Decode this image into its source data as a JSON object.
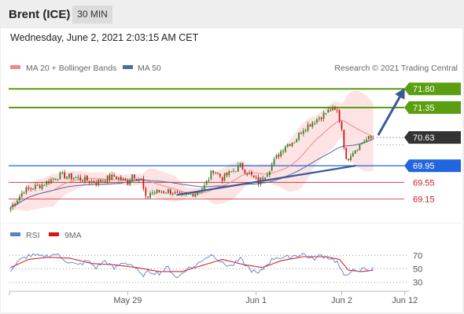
{
  "header": {
    "instrument": "Brent (ICE)",
    "timeframe": "30 MIN",
    "datetime": "Wednesday, June 2, 2021 2:03:15 AM CET"
  },
  "legend": {
    "ma20": "MA 20 + Bollinger Bands",
    "ma50": "MA 50",
    "credit": "Research © 2021 Trading Central",
    "rsi": "RSI",
    "ma9": "9MA"
  },
  "colors": {
    "green": "#5a9e11",
    "blue": "#2266dd",
    "red": "#cc2222",
    "dark": "#333333",
    "candle_up": "#2e7d1e",
    "candle_down": "#cc1111",
    "ma20": "#ee8888",
    "ma50": "#4a6da8",
    "band_fill": "#fde3e3",
    "trend": "#3a5a95"
  },
  "chart_data": [
    {
      "type": "candlestick",
      "name": "price",
      "y_range": [
        68.8,
        72.05
      ],
      "levels": [
        {
          "value": 71.8,
          "label": "71.80",
          "kind": "resistance",
          "color": "#5a9e11",
          "style": "tag"
        },
        {
          "value": 71.35,
          "label": "71.35",
          "kind": "resistance",
          "color": "#5a9e11",
          "style": "tag"
        },
        {
          "value": 70.63,
          "label": "70.63",
          "kind": "last",
          "color": "#333333",
          "style": "tag"
        },
        {
          "value": 69.95,
          "label": "69.95",
          "kind": "pivot",
          "color": "#2266dd",
          "style": "tag"
        },
        {
          "value": 69.55,
          "label": "69.55",
          "kind": "support",
          "color": "#cc2222",
          "style": "text"
        },
        {
          "value": 69.15,
          "label": "69.15",
          "kind": "support",
          "color": "#cc2222",
          "style": "text"
        }
      ],
      "x_ticks": [
        {
          "label": "May 29",
          "bar": 52
        },
        {
          "label": "Jun 1",
          "bar": 109
        },
        {
          "label": "Jun 2",
          "bar": 147
        },
        {
          "label": "Jun 12",
          "bar": 175
        }
      ],
      "total_slots": 177,
      "bars": 162,
      "anchors": [
        [
          0,
          68.95
        ],
        [
          6,
          69.35
        ],
        [
          14,
          69.5
        ],
        [
          22,
          69.72
        ],
        [
          30,
          69.65
        ],
        [
          38,
          69.55
        ],
        [
          46,
          69.7
        ],
        [
          52,
          69.55
        ],
        [
          54,
          69.75
        ],
        [
          58,
          69.6
        ],
        [
          60,
          69.15
        ],
        [
          62,
          69.3
        ],
        [
          70,
          69.35
        ],
        [
          76,
          69.2
        ],
        [
          82,
          69.3
        ],
        [
          86,
          69.45
        ],
        [
          90,
          69.85
        ],
        [
          94,
          69.65
        ],
        [
          98,
          69.8
        ],
        [
          102,
          69.95
        ],
        [
          106,
          69.75
        ],
        [
          110,
          69.55
        ],
        [
          114,
          69.8
        ],
        [
          118,
          70.15
        ],
        [
          122,
          70.45
        ],
        [
          126,
          70.55
        ],
        [
          130,
          70.85
        ],
        [
          134,
          71.0
        ],
        [
          138,
          71.15
        ],
        [
          142,
          71.3
        ],
        [
          145,
          71.25
        ],
        [
          147,
          70.85
        ],
        [
          149,
          70.05
        ],
        [
          151,
          70.25
        ],
        [
          154,
          70.4
        ],
        [
          157,
          70.55
        ],
        [
          159,
          70.6
        ],
        [
          161,
          70.63
        ]
      ],
      "trendline": [
        [
          74,
          69.25
        ],
        [
          153,
          69.95
        ]
      ],
      "projection": [
        [
          162,
          70.63
        ],
        [
          175,
          71.82
        ]
      ]
    },
    {
      "type": "line",
      "name": "rsi",
      "y_ticks": [
        70,
        50,
        30
      ],
      "y_range": [
        18,
        82
      ],
      "anchors": [
        [
          0,
          48
        ],
        [
          4,
          62
        ],
        [
          8,
          70
        ],
        [
          14,
          68
        ],
        [
          20,
          72
        ],
        [
          26,
          60
        ],
        [
          30,
          55
        ],
        [
          34,
          62
        ],
        [
          38,
          52
        ],
        [
          42,
          62
        ],
        [
          46,
          50
        ],
        [
          50,
          60
        ],
        [
          54,
          56
        ],
        [
          58,
          40
        ],
        [
          62,
          46
        ],
        [
          66,
          44
        ],
        [
          70,
          52
        ],
        [
          74,
          36
        ],
        [
          78,
          50
        ],
        [
          82,
          54
        ],
        [
          86,
          66
        ],
        [
          90,
          72
        ],
        [
          94,
          58
        ],
        [
          98,
          54
        ],
        [
          102,
          64
        ],
        [
          106,
          50
        ],
        [
          110,
          42
        ],
        [
          114,
          58
        ],
        [
          118,
          68
        ],
        [
          122,
          66
        ],
        [
          126,
          70
        ],
        [
          130,
          72
        ],
        [
          134,
          64
        ],
        [
          138,
          70
        ],
        [
          142,
          66
        ],
        [
          145,
          60
        ],
        [
          148,
          38
        ],
        [
          151,
          48
        ],
        [
          154,
          44
        ],
        [
          157,
          52
        ],
        [
          160,
          48
        ],
        [
          161,
          50
        ]
      ],
      "ma_anchors": [
        [
          0,
          52
        ],
        [
          8,
          64
        ],
        [
          16,
          67
        ],
        [
          26,
          66
        ],
        [
          36,
          58
        ],
        [
          46,
          56
        ],
        [
          56,
          52
        ],
        [
          66,
          46
        ],
        [
          76,
          46
        ],
        [
          86,
          56
        ],
        [
          94,
          64
        ],
        [
          104,
          56
        ],
        [
          112,
          52
        ],
        [
          120,
          62
        ],
        [
          130,
          68
        ],
        [
          140,
          68
        ],
        [
          146,
          64
        ],
        [
          150,
          48
        ],
        [
          156,
          46
        ],
        [
          161,
          48
        ]
      ]
    }
  ]
}
